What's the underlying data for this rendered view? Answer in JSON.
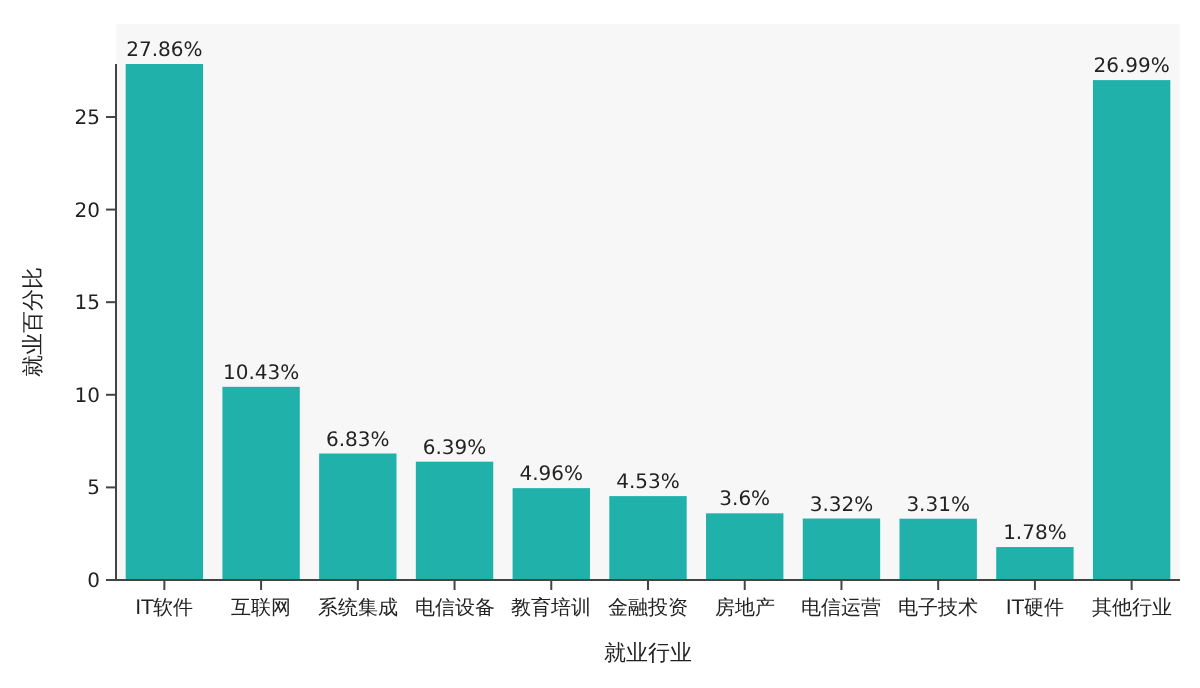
{
  "chart_data": {
    "type": "bar",
    "xlabel": "就业行业",
    "ylabel": "就业百分比",
    "categories": [
      "IT软件",
      "互联网",
      "系统集成",
      "电信设备",
      "教育培训",
      "金融投资",
      "房地产",
      "电信运营",
      "电子技术",
      "IT硬件",
      "其他行业"
    ],
    "values": [
      27.86,
      10.43,
      6.83,
      6.39,
      4.96,
      4.53,
      3.6,
      3.32,
      3.31,
      1.78,
      26.99
    ],
    "value_labels": [
      "27.86%",
      "10.43%",
      "6.83%",
      "6.39%",
      "4.96%",
      "4.53%",
      "3.6%",
      "3.32%",
      "3.31%",
      "1.78%",
      "26.99%"
    ],
    "color": "#20b2aa",
    "ylim": [
      0,
      27.86
    ],
    "yticks": [
      0,
      5,
      10,
      15,
      20,
      25
    ],
    "grid": false
  }
}
